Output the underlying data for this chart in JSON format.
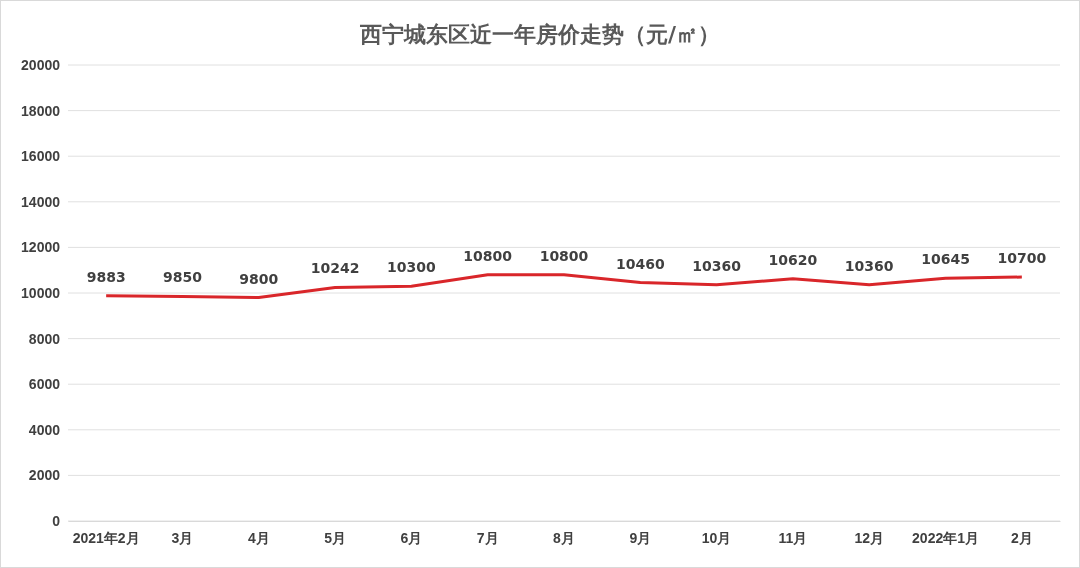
{
  "chart_data": {
    "type": "line",
    "title": "西宁城东区近一年房价走势（元/㎡）",
    "categories": [
      "2021年2月",
      "3月",
      "4月",
      "5月",
      "6月",
      "7月",
      "8月",
      "9月",
      "10月",
      "11月",
      "12月",
      "2022年1月",
      "2月"
    ],
    "series": [
      {
        "color": "#d9262a",
        "values": [
          9883,
          9850,
          9800,
          10242,
          10300,
          10800,
          10800,
          10460,
          10360,
          10620,
          10360,
          10645,
          10700
        ]
      }
    ],
    "ylim": [
      0,
      20000
    ],
    "yticks": [
      0,
      2000,
      4000,
      6000,
      8000,
      10000,
      12000,
      14000,
      16000,
      18000,
      20000
    ],
    "grid": "y",
    "data_labels": true,
    "marker": "none",
    "line_style": "solid"
  }
}
